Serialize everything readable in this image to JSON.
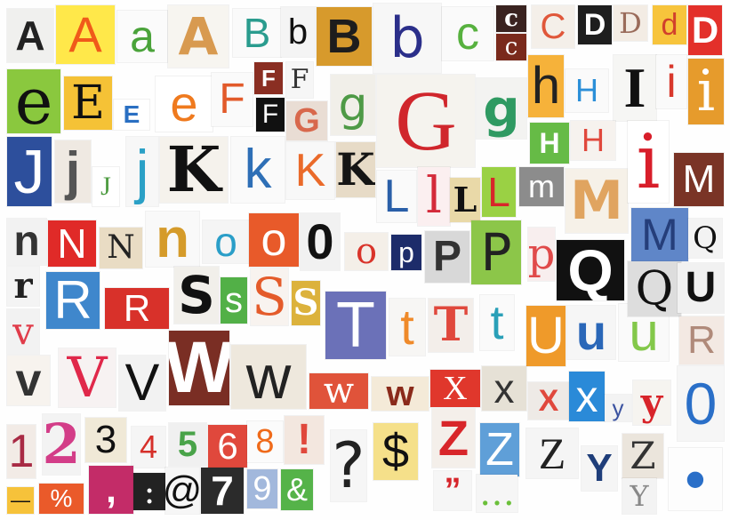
{
  "image": {
    "subject": "ransom-note style cut-out magazine letters, numbers and symbols",
    "tiles": [
      {
        "char": "A",
        "fg": "#222222",
        "bg": "#f0f0ee"
      },
      {
        "char": "A",
        "fg": "#f05a1a",
        "bg": "#ffe84a"
      },
      {
        "char": "a",
        "fg": "#4aa33a",
        "bg": "#fbfbfb"
      },
      {
        "char": "A",
        "fg": "#d89a50",
        "bg": "#f7f5f0"
      },
      {
        "char": "B",
        "fg": "#2a9c8e",
        "bg": "#fafafa"
      },
      {
        "char": "b",
        "fg": "#111111",
        "bg": "#f4f4f4"
      },
      {
        "char": "B",
        "fg": "#1d1d1d",
        "bg": "#d79a2c"
      },
      {
        "char": "b",
        "fg": "#2b2f8a",
        "bg": "#f7f7f7"
      },
      {
        "char": "c",
        "fg": "#57b13f",
        "bg": "#fafafa"
      },
      {
        "char": "c",
        "fg": "#ffffff",
        "bg": "#3a2320"
      },
      {
        "char": "c",
        "fg": "#ffffff",
        "bg": "#7a2a1c"
      },
      {
        "char": "C",
        "fg": "#e0573a",
        "bg": "#f4efe9"
      },
      {
        "char": "D",
        "fg": "#ffffff",
        "bg": "#1e1e1e"
      },
      {
        "char": "D",
        "fg": "#9a6b5a",
        "bg": "#f3ece4"
      },
      {
        "char": "d",
        "fg": "#d1402c",
        "bg": "#f7c43c"
      },
      {
        "char": "D",
        "fg": "#ffffff",
        "bg": "#e3302a"
      },
      {
        "char": "e",
        "fg": "#111111",
        "bg": "#8ac83e"
      },
      {
        "char": "E",
        "fg": "#111111",
        "bg": "#f5c236"
      },
      {
        "char": "E",
        "fg": "#2a6fc2",
        "bg": "#ffffff"
      },
      {
        "char": "e",
        "fg": "#ef7a1e",
        "bg": "#ffffff"
      },
      {
        "char": "F",
        "fg": "#e25a2a",
        "bg": "#fafafa"
      },
      {
        "char": "F",
        "fg": "#ffffff",
        "bg": "#8a2e22"
      },
      {
        "char": "F",
        "fg": "#333333",
        "bg": "#f6f6f6"
      },
      {
        "char": "F",
        "fg": "#ffffff",
        "bg": "#111111"
      },
      {
        "char": "G",
        "fg": "#d8684c",
        "bg": "#e9ddd4"
      },
      {
        "char": "g",
        "fg": "#4e9a46",
        "bg": "#f1efe9"
      },
      {
        "char": "G",
        "fg": "#d0262c",
        "bg": "#f5f3ee"
      },
      {
        "char": "g",
        "fg": "#2f9a62",
        "bg": "#f3f3f1"
      },
      {
        "char": "h",
        "fg": "#222222",
        "bg": "#f6b23a"
      },
      {
        "char": "H",
        "fg": "#2b8fd8",
        "bg": "#fafafa"
      },
      {
        "char": "I",
        "fg": "#111111",
        "bg": "#f6f6f4"
      },
      {
        "char": "i",
        "fg": "#d8382c",
        "bg": "#fafafa"
      },
      {
        "char": "i",
        "fg": "#ffffff",
        "bg": "#e69b2c"
      },
      {
        "char": "H",
        "fg": "#ffffff",
        "bg": "#66bb46"
      },
      {
        "char": "H",
        "fg": "#e0483c",
        "bg": "#f6f2ee"
      },
      {
        "char": "J",
        "fg": "#ffffff",
        "bg": "#2d4f9c"
      },
      {
        "char": "j",
        "fg": "#555555",
        "bg": "#efe9e2"
      },
      {
        "char": "J",
        "fg": "#4d9b40",
        "bg": "#ffffff"
      },
      {
        "char": "j",
        "fg": "#2aa0c6",
        "bg": "#f7f7f7"
      },
      {
        "char": "K",
        "fg": "#111111",
        "bg": "#f5f2ec"
      },
      {
        "char": "k",
        "fg": "#2e6fb6",
        "bg": "#fafafa"
      },
      {
        "char": "K",
        "fg": "#ea6a2a",
        "bg": "#f8f8f8"
      },
      {
        "char": "K",
        "fg": "#151515",
        "bg": "#e7dbc7"
      },
      {
        "char": "L",
        "fg": "#2a5fa8",
        "bg": "#fafafa"
      },
      {
        "char": "l",
        "fg": "#d42a3a",
        "bg": "#fbeff0"
      },
      {
        "char": "L",
        "fg": "#111111",
        "bg": "#e9d9a8"
      },
      {
        "char": "L",
        "fg": "#d8262a",
        "bg": "#9ad144"
      },
      {
        "char": "m",
        "fg": "#ffffff",
        "bg": "#8c8c8c"
      },
      {
        "char": "M",
        "fg": "#e0a460",
        "bg": "#f6f1e8"
      },
      {
        "char": "i",
        "fg": "#d81e2a",
        "bg": "#ffffff"
      },
      {
        "char": "M",
        "fg": "#ffffff",
        "bg": "#7a3426"
      },
      {
        "char": "n",
        "fg": "#333333",
        "bg": "#f2f2f2"
      },
      {
        "char": "N",
        "fg": "#ffffff",
        "bg": "#e02a28"
      },
      {
        "char": "N",
        "fg": "#222222",
        "bg": "#e9dcc4"
      },
      {
        "char": "n",
        "fg": "#d59b2a",
        "bg": "#f9f9f9"
      },
      {
        "char": "o",
        "fg": "#2a9ec8",
        "bg": "#f5f5f5"
      },
      {
        "char": "o",
        "fg": "#ffffff",
        "bg": "#e85a2a"
      },
      {
        "char": "0",
        "fg": "#111111",
        "bg": "#f1f1f1"
      },
      {
        "char": "o",
        "fg": "#d9342a",
        "bg": "#f4efe8"
      },
      {
        "char": "p",
        "fg": "#ffffff",
        "bg": "#1d2c6a"
      },
      {
        "char": "P",
        "fg": "#333333",
        "bg": "#d8d8d8"
      },
      {
        "char": "P",
        "fg": "#222222",
        "bg": "#8cc649"
      },
      {
        "char": "p",
        "fg": "#e04a4a",
        "bg": "#f8eeee"
      },
      {
        "char": "Q",
        "fg": "#ffffff",
        "bg": "#111111"
      },
      {
        "char": "M",
        "fg": "#253e7a",
        "bg": "#5f86c8"
      },
      {
        "char": "Q",
        "fg": "#111111",
        "bg": "#f3f3f3"
      },
      {
        "char": "r",
        "fg": "#222222",
        "bg": "#f4f4f4"
      },
      {
        "char": "R",
        "fg": "#ffffff",
        "bg": "#3f87cc"
      },
      {
        "char": "R",
        "fg": "#ffffff",
        "bg": "#d8312a"
      },
      {
        "char": "S",
        "fg": "#111111",
        "bg": "#f1efea"
      },
      {
        "char": "s",
        "fg": "#ffffff",
        "bg": "#52b047"
      },
      {
        "char": "S",
        "fg": "#e45b2a",
        "bg": "#f8f3ef"
      },
      {
        "char": "S",
        "fg": "#ffffff",
        "bg": "#dcb23c"
      },
      {
        "char": "T",
        "fg": "#ffffff",
        "bg": "#6b71b8"
      },
      {
        "char": "t",
        "fg": "#ef8a2a",
        "bg": "#f7f6f4"
      },
      {
        "char": "T",
        "fg": "#e0483c",
        "bg": "#f3eeea"
      },
      {
        "char": "t",
        "fg": "#2aa0b8",
        "bg": "#fafafa"
      },
      {
        "char": "U",
        "fg": "#ffffff",
        "bg": "#ef9a2a"
      },
      {
        "char": "u",
        "fg": "#2a67b8",
        "bg": "#f6f6f6"
      },
      {
        "char": "u",
        "fg": "#83c84a",
        "bg": "#fafafa"
      },
      {
        "char": "Q",
        "fg": "#111111",
        "bg": "#dddddd"
      },
      {
        "char": "U",
        "fg": "#111111",
        "bg": "#f1f1f1"
      },
      {
        "char": "R",
        "fg": "#b08a7a",
        "bg": "#f3e9e3"
      },
      {
        "char": "v",
        "fg": "#e03c4a",
        "bg": "#f2f2f2"
      },
      {
        "char": "v",
        "fg": "#333333",
        "bg": "#f7f3ee"
      },
      {
        "char": "V",
        "fg": "#e0284a",
        "bg": "#f7f2f2"
      },
      {
        "char": "V",
        "fg": "#111111",
        "bg": "#f2f2f2"
      },
      {
        "char": "W",
        "fg": "#ffffff",
        "bg": "#7a2e24"
      },
      {
        "char": "w",
        "fg": "#222222",
        "bg": "#eee8dd"
      },
      {
        "char": "w",
        "fg": "#ffffff",
        "bg": "#e0533a"
      },
      {
        "char": "w",
        "fg": "#8a2a1a",
        "bg": "#f4ead8"
      },
      {
        "char": "X",
        "fg": "#ffffff",
        "bg": "#e0372c"
      },
      {
        "char": "x",
        "fg": "#333333",
        "bg": "#e6e1d6"
      },
      {
        "char": "X",
        "fg": "#e0483c",
        "bg": "#eeeae6"
      },
      {
        "char": "x",
        "fg": "#ffffff",
        "bg": "#2a8ad8"
      },
      {
        "char": "y",
        "fg": "#3a52a0",
        "bg": "#f3f3f3"
      },
      {
        "char": "y",
        "fg": "#d8242a",
        "bg": "#f6f4f0"
      },
      {
        "char": "0",
        "fg": "#2a6fc8",
        "bg": "#f6f6f6"
      },
      {
        "char": "1",
        "fg": "#a82a44",
        "bg": "#f2ebe6"
      },
      {
        "char": "2",
        "fg": "#d33d88",
        "bg": "#f3f3f3"
      },
      {
        "char": "3",
        "fg": "#111111",
        "bg": "#f0e9d7"
      },
      {
        "char": "4",
        "fg": "#d6302a",
        "bg": "#f5f5f5"
      },
      {
        "char": "5",
        "fg": "#49a349",
        "bg": "#f0f0f0"
      },
      {
        "char": "6",
        "fg": "#ffffff",
        "bg": "#e0483c"
      },
      {
        "char": "8",
        "fg": "#ef6a1a",
        "bg": "#fbfbfb"
      },
      {
        "char": "!",
        "fg": "#e0483c",
        "bg": "#f3e7df"
      },
      {
        "char": "?",
        "fg": "#222222",
        "bg": "#f6f6f6"
      },
      {
        "char": "$",
        "fg": "#111111",
        "bg": "#f5e08a"
      },
      {
        "char": "Z",
        "fg": "#d8262a",
        "bg": "#f4efea"
      },
      {
        "char": "Z",
        "fg": "#ffffff",
        "bg": "#5f9fd8"
      },
      {
        "char": "Z",
        "fg": "#222222",
        "bg": "#f5f5f5"
      },
      {
        "char": "Y",
        "fg": "#1f3e7a",
        "bg": "#f5f5f5"
      },
      {
        "char": "Z",
        "fg": "#333333",
        "bg": "#ebe5dc"
      },
      {
        "char": "Y",
        "fg": "#888888",
        "bg": "#f3f3f3"
      },
      {
        "char": "•",
        "fg": "#2a6fc8",
        "bg": "#fdfdfd"
      },
      {
        "char": "—",
        "fg": "#111111",
        "bg": "#f6c23a"
      },
      {
        "char": "%",
        "fg": "#ffffff",
        "bg": "#ea5a2a"
      },
      {
        "char": ",",
        "fg": "#ffffff",
        "bg": "#c32c68"
      },
      {
        "char": ":",
        "fg": "#ffffff",
        "bg": "#222222"
      },
      {
        "char": "@",
        "fg": "#111111",
        "bg": "#f6f6f6"
      },
      {
        "char": "7",
        "fg": "#ffffff",
        "bg": "#2b2b2b"
      },
      {
        "char": "9",
        "fg": "#ffffff",
        "bg": "#a2b8dc"
      },
      {
        "char": "&",
        "fg": "#ffffff",
        "bg": "#55b349"
      },
      {
        "char": "”",
        "fg": "#d6242a",
        "bg": "#f6f6f6"
      },
      {
        "char": "…",
        "fg": "#6bc03a",
        "bg": "#f6f6f6"
      }
    ]
  }
}
